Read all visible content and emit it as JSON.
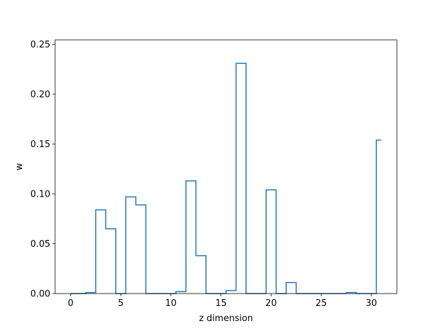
{
  "chart_data": {
    "type": "line",
    "title": "",
    "xlabel": "z dimension",
    "ylabel": "w",
    "xlim": [
      -1.55,
      32.55
    ],
    "ylim": [
      0.0,
      0.2545
    ],
    "grid": false,
    "legend": "none",
    "line_color": "#1f77b4",
    "x": [
      0,
      1,
      2,
      3,
      4,
      5,
      6,
      7,
      8,
      9,
      10,
      11,
      12,
      13,
      14,
      15,
      16,
      17,
      18,
      19,
      20,
      21,
      22,
      23,
      24,
      25,
      26,
      27,
      28,
      29,
      30,
      31
    ],
    "y": [
      0.0,
      0.0,
      0.001,
      0.084,
      0.065,
      0.0,
      0.097,
      0.089,
      0.0,
      0.0,
      0.0,
      0.002,
      0.113,
      0.038,
      0.0,
      0.0,
      0.003,
      0.231,
      0.0,
      0.0,
      0.104,
      0.0,
      0.011,
      0.0,
      0.0,
      0.0,
      0.0,
      0.0,
      0.001,
      0.0,
      0.0,
      0.154
    ],
    "x_ticks": [
      0,
      5,
      10,
      15,
      20,
      25,
      30
    ],
    "x_tick_labels": [
      "0",
      "5",
      "10",
      "15",
      "20",
      "25",
      "30"
    ],
    "y_ticks": [
      0.0,
      0.05,
      0.1,
      0.15,
      0.2,
      0.25
    ],
    "y_tick_labels": [
      "0.00",
      "0.05",
      "0.10",
      "0.15",
      "0.20",
      "0.25"
    ]
  }
}
